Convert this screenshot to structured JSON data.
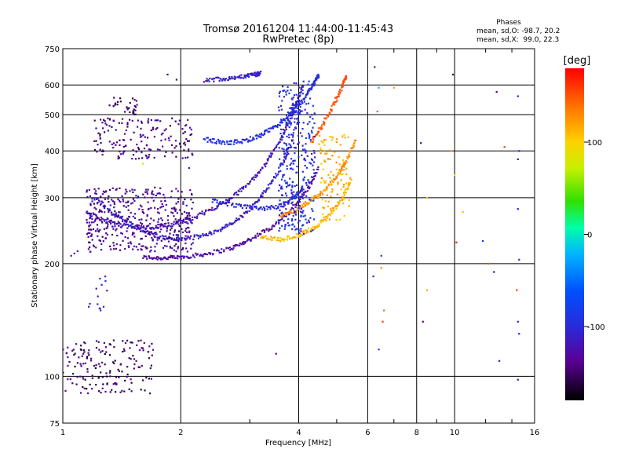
{
  "chart_data": {
    "type": "scatter",
    "title": "Tromsø 20161204 11:44:00-11:45:43",
    "subtitle": "RwPretec (8p)",
    "xlabel": "Frequency [MHz]",
    "ylabel": "Stationary phase Virtual Height [km]",
    "x_scale": "log",
    "y_scale": "log",
    "xlim": [
      1,
      16
    ],
    "ylim": [
      75,
      750
    ],
    "x_ticks": [
      1,
      2,
      4,
      6,
      8,
      10,
      16
    ],
    "x_tick_labels": [
      "1",
      "2",
      "4",
      "6",
      "8",
      "10",
      "16"
    ],
    "y_ticks": [
      75,
      100,
      200,
      300,
      400,
      500,
      600,
      750
    ],
    "y_tick_labels": [
      "75",
      "100",
      "200",
      "300",
      "400",
      "500",
      "600",
      "750"
    ],
    "grid": true,
    "phases_box": {
      "title": "Phases",
      "line_o": "mean, sd,O: -98.7, 20.2",
      "line_x": "mean, sd,X:  99.0, 22.3"
    },
    "colorbar": {
      "label": "[deg]",
      "range": [
        -180,
        180
      ],
      "ticks": [
        100,
        0,
        -100
      ],
      "tick_labels": [
        "100",
        "0",
        "-100"
      ]
    },
    "series": [
      {
        "traces": [
          {
            "f": [
              1.6,
              1.8,
              2.0,
              2.3,
              2.7,
              3.0,
              3.4,
              3.8,
              4.2,
              4.5
            ],
            "h": [
              208,
              207,
              208,
              212,
              220,
              232,
              250,
              275,
              315,
              360
            ],
            "phase": -130
          },
          {
            "f": [
              1.2,
              1.4,
              1.6,
              1.8,
              2.0,
              2.3,
              2.6,
              2.9,
              3.2,
              3.5,
              3.8,
              4.05
            ],
            "h": [
              300,
              265,
              245,
              235,
              232,
              238,
              250,
              270,
              300,
              345,
              410,
              520
            ],
            "phase": -110
          },
          {
            "f": [
              1.15,
              1.3,
              1.5,
              1.7,
              1.9,
              2.1,
              2.4,
              2.7,
              3.0,
              3.3,
              3.6,
              3.9,
              4.1
            ],
            "h": [
              275,
              258,
              250,
              250,
              255,
              262,
              280,
              300,
              330,
              370,
              430,
              520,
              600
            ],
            "phase": -120
          },
          {
            "f": [
              2.3,
              2.6,
              2.9,
              3.2,
              3.5,
              3.8,
              4.1,
              4.35,
              4.5
            ],
            "h": [
              430,
              420,
              425,
              440,
              465,
              500,
              545,
              600,
              640
            ],
            "phase": -95
          },
          {
            "f": [
              2.4,
              2.8,
              3.2,
              3.6,
              3.9,
              4.1
            ],
            "h": [
              295,
              285,
              280,
              285,
              300,
              320
            ],
            "phase": -100
          },
          {
            "f": [
              3.2,
              3.6,
              4.0,
              4.4,
              4.8,
              5.2,
              5.45
            ],
            "h": [
              235,
              232,
              238,
              250,
              270,
              300,
              340
            ],
            "phase": 110
          },
          {
            "f": [
              3.6,
              3.9,
              4.2,
              4.6,
              5.0,
              5.3,
              5.6
            ],
            "h": [
              270,
              275,
              290,
              310,
              340,
              380,
              430
            ],
            "phase": 125
          },
          {
            "f": [
              4.3,
              4.6,
              4.9,
              5.15,
              5.3
            ],
            "h": [
              420,
              470,
              530,
              590,
              640
            ],
            "phase": 150
          },
          {
            "f": [
              2.3,
              2.6,
              2.9,
              3.1,
              3.2
            ],
            "h": [
              618,
              625,
              633,
              640,
              645
            ],
            "phase": -110
          }
        ]
      }
    ],
    "clusters": [
      {
        "f": [
          1.15,
          2.15
        ],
        "h": [
          215,
          320
        ],
        "n": 420,
        "phase": -135
      },
      {
        "f": [
          1.2,
          2.15
        ],
        "h": [
          380,
          490
        ],
        "n": 170,
        "phase": -140
      },
      {
        "f": [
          1.3,
          1.55
        ],
        "h": [
          500,
          555
        ],
        "n": 30,
        "phase": -145
      },
      {
        "f": [
          3.55,
          4.4
        ],
        "h": [
          240,
          620
        ],
        "n": 320,
        "phase": -95
      },
      {
        "f": [
          4.5,
          5.4
        ],
        "h": [
          260,
          450
        ],
        "n": 90,
        "phase": 115
      },
      {
        "f": [
          1.0,
          1.7
        ],
        "h": [
          90,
          125
        ],
        "n": 170,
        "phase": -150
      },
      {
        "f": [
          1.15,
          1.3
        ],
        "h": [
          150,
          185
        ],
        "n": 14,
        "phase": -110
      }
    ],
    "sparse_points": [
      {
        "f": 1.05,
        "h": 210,
        "phase": -120
      },
      {
        "f": 1.07,
        "h": 213,
        "phase": -120
      },
      {
        "f": 1.09,
        "h": 216,
        "phase": -120
      },
      {
        "f": 1.35,
        "h": 555,
        "phase": -150
      },
      {
        "f": 1.85,
        "h": 640,
        "phase": -150
      },
      {
        "f": 1.95,
        "h": 620,
        "phase": -150
      },
      {
        "f": 1.6,
        "h": 370,
        "phase": 80
      },
      {
        "f": 1.55,
        "h": 300,
        "phase": -60
      },
      {
        "f": 3.5,
        "h": 115,
        "phase": -140
      },
      {
        "f": 2.1,
        "h": 360,
        "phase": -130
      },
      {
        "f": 6.25,
        "h": 670,
        "phase": -120
      },
      {
        "f": 6.4,
        "h": 590,
        "phase": -20
      },
      {
        "f": 6.35,
        "h": 510,
        "phase": 150
      },
      {
        "f": 7.0,
        "h": 590,
        "phase": 120
      },
      {
        "f": 6.2,
        "h": 185,
        "phase": -100
      },
      {
        "f": 6.5,
        "h": 195,
        "phase": 130
      },
      {
        "f": 6.6,
        "h": 150,
        "phase": 140
      },
      {
        "f": 6.55,
        "h": 140,
        "phase": 160
      },
      {
        "f": 6.4,
        "h": 118,
        "phase": -90
      },
      {
        "f": 6.5,
        "h": 210,
        "phase": -80
      },
      {
        "f": 8.2,
        "h": 420,
        "phase": -140
      },
      {
        "f": 8.5,
        "h": 300,
        "phase": 110
      },
      {
        "f": 8.3,
        "h": 140,
        "phase": -140
      },
      {
        "f": 8.5,
        "h": 170,
        "phase": 120
      },
      {
        "f": 9.8,
        "h": 400,
        "phase": 130
      },
      {
        "f": 10.0,
        "h": 345,
        "phase": 90
      },
      {
        "f": 10.1,
        "h": 228,
        "phase": 170
      },
      {
        "f": 10.5,
        "h": 275,
        "phase": 110
      },
      {
        "f": 9.9,
        "h": 640,
        "phase": -150
      },
      {
        "f": 11.8,
        "h": 230,
        "phase": -90
      },
      {
        "f": 12.2,
        "h": 200,
        "phase": 150
      },
      {
        "f": 12.6,
        "h": 190,
        "phase": -140
      },
      {
        "f": 13.0,
        "h": 110,
        "phase": -120
      },
      {
        "f": 13.4,
        "h": 410,
        "phase": 160
      },
      {
        "f": 14.5,
        "h": 560,
        "phase": -110
      },
      {
        "f": 14.6,
        "h": 400,
        "phase": -110
      },
      {
        "f": 14.5,
        "h": 380,
        "phase": -110
      },
      {
        "f": 14.5,
        "h": 280,
        "phase": -110
      },
      {
        "f": 14.6,
        "h": 205,
        "phase": -110
      },
      {
        "f": 14.4,
        "h": 170,
        "phase": 160
      },
      {
        "f": 14.5,
        "h": 140,
        "phase": -110
      },
      {
        "f": 14.6,
        "h": 130,
        "phase": -110
      },
      {
        "f": 14.5,
        "h": 98,
        "phase": -110
      },
      {
        "f": 12.8,
        "h": 575,
        "phase": -140
      }
    ]
  }
}
